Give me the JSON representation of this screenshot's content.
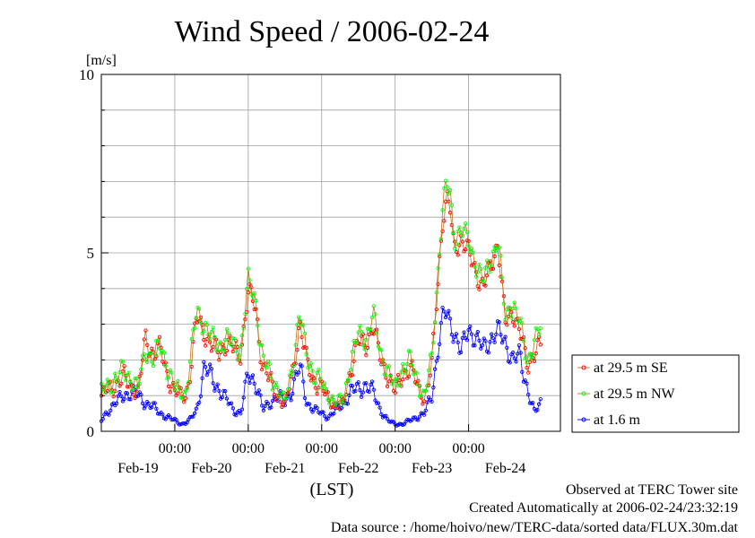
{
  "chart_data": {
    "type": "line",
    "title": "Wind Speed / 2006-02-24",
    "ylabel": "[m/s]",
    "xlabel": "(LST)",
    "ylim": [
      0,
      10
    ],
    "yticks": [
      0,
      5,
      10
    ],
    "y_gridlines": [
      0,
      1,
      2,
      3,
      4,
      5,
      6,
      7,
      8,
      9,
      10
    ],
    "xlim_days": [
      0,
      6.25
    ],
    "x_gridlines_days": [
      1,
      2,
      3,
      4,
      5
    ],
    "x_tick_labels": [
      {
        "label": "00:00",
        "at_day": 1
      },
      {
        "label": "00:00",
        "at_day": 2
      },
      {
        "label": "00:00",
        "at_day": 3
      },
      {
        "label": "00:00",
        "at_day": 4
      },
      {
        "label": "00:00",
        "at_day": 5
      }
    ],
    "date_labels": [
      {
        "label": "Feb-19",
        "at_day": 0.5
      },
      {
        "label": "Feb-20",
        "at_day": 1.5
      },
      {
        "label": "Feb-21",
        "at_day": 2.5
      },
      {
        "label": "Feb-22",
        "at_day": 3.5
      },
      {
        "label": "Feb-23",
        "at_day": 4.5
      },
      {
        "label": "Feb-24",
        "at_day": 5.5
      }
    ],
    "grid": true,
    "legend_position": "right",
    "sample_interval_hours": 0.5,
    "series": [
      {
        "name": "at 29.5 m SE",
        "color": "#ff0000",
        "line_color": "#c07020",
        "anchors": [
          [
            0,
            1.0
          ],
          [
            0.1,
            1.2
          ],
          [
            0.2,
            1.3
          ],
          [
            0.3,
            1.5
          ],
          [
            0.4,
            1.3
          ],
          [
            0.5,
            1.1
          ],
          [
            0.55,
            1.8
          ],
          [
            0.6,
            2.6
          ],
          [
            0.7,
            2.2
          ],
          [
            0.8,
            2.3
          ],
          [
            0.9,
            1.6
          ],
          [
            1.0,
            1.1
          ],
          [
            1.1,
            1.0
          ],
          [
            1.15,
            1.0
          ],
          [
            1.2,
            1.5
          ],
          [
            1.3,
            3.2
          ],
          [
            1.4,
            2.8
          ],
          [
            1.5,
            2.4
          ],
          [
            1.6,
            2.2
          ],
          [
            1.7,
            2.5
          ],
          [
            1.8,
            2.3
          ],
          [
            1.9,
            2.2
          ],
          [
            2.0,
            3.9
          ],
          [
            2.1,
            3.5
          ],
          [
            2.15,
            2.5
          ],
          [
            2.2,
            1.8
          ],
          [
            2.3,
            1.4
          ],
          [
            2.4,
            1.0
          ],
          [
            2.5,
            0.7
          ],
          [
            2.6,
            1.6
          ],
          [
            2.7,
            3.0
          ],
          [
            2.8,
            1.9
          ],
          [
            2.9,
            1.4
          ],
          [
            3.0,
            1.2
          ],
          [
            3.1,
            0.9
          ],
          [
            3.2,
            0.7
          ],
          [
            3.3,
            0.8
          ],
          [
            3.4,
            1.8
          ],
          [
            3.5,
            2.5
          ],
          [
            3.6,
            2.4
          ],
          [
            3.7,
            3.0
          ],
          [
            3.8,
            2.0
          ],
          [
            3.9,
            1.6
          ],
          [
            4.0,
            1.1
          ],
          [
            4.1,
            1.6
          ],
          [
            4.2,
            1.8
          ],
          [
            4.3,
            1.3
          ],
          [
            4.4,
            0.9
          ],
          [
            4.5,
            1.8
          ],
          [
            4.6,
            4.7
          ],
          [
            4.65,
            6.0
          ],
          [
            4.7,
            6.5
          ],
          [
            4.75,
            6.2
          ],
          [
            4.8,
            5.1
          ],
          [
            4.9,
            5.4
          ],
          [
            5.0,
            5.0
          ],
          [
            5.1,
            4.5
          ],
          [
            5.2,
            4.0
          ],
          [
            5.3,
            4.6
          ],
          [
            5.4,
            5.3
          ],
          [
            5.5,
            3.0
          ],
          [
            5.6,
            3.4
          ],
          [
            5.7,
            2.8
          ],
          [
            5.8,
            1.8
          ],
          [
            5.9,
            2.3
          ],
          [
            5.98,
            2.4
          ]
        ]
      },
      {
        "name": "at 29.5 m NW",
        "color": "#00ff00",
        "line_color": "#c07020",
        "anchors": [
          [
            0,
            1.1
          ],
          [
            0.1,
            1.3
          ],
          [
            0.2,
            1.5
          ],
          [
            0.3,
            1.7
          ],
          [
            0.4,
            1.5
          ],
          [
            0.5,
            1.2
          ],
          [
            0.55,
            1.7
          ],
          [
            0.6,
            2.3
          ],
          [
            0.7,
            2.0
          ],
          [
            0.8,
            2.4
          ],
          [
            0.9,
            1.8
          ],
          [
            1.0,
            1.2
          ],
          [
            1.1,
            1.1
          ],
          [
            1.15,
            1.1
          ],
          [
            1.2,
            1.8
          ],
          [
            1.3,
            3.4
          ],
          [
            1.4,
            3.0
          ],
          [
            1.5,
            2.6
          ],
          [
            1.6,
            2.4
          ],
          [
            1.7,
            2.6
          ],
          [
            1.8,
            2.4
          ],
          [
            1.9,
            2.3
          ],
          [
            2.0,
            4.2
          ],
          [
            2.1,
            3.7
          ],
          [
            2.15,
            2.7
          ],
          [
            2.2,
            2.0
          ],
          [
            2.3,
            1.6
          ],
          [
            2.4,
            1.2
          ],
          [
            2.5,
            0.8
          ],
          [
            2.6,
            1.8
          ],
          [
            2.7,
            3.3
          ],
          [
            2.8,
            2.1
          ],
          [
            2.9,
            1.6
          ],
          [
            3.0,
            1.3
          ],
          [
            3.1,
            1.0
          ],
          [
            3.2,
            0.8
          ],
          [
            3.3,
            0.9
          ],
          [
            3.4,
            2.0
          ],
          [
            3.5,
            2.7
          ],
          [
            3.6,
            2.6
          ],
          [
            3.7,
            3.3
          ],
          [
            3.8,
            2.2
          ],
          [
            3.9,
            1.7
          ],
          [
            4.0,
            1.2
          ],
          [
            4.1,
            1.8
          ],
          [
            4.2,
            2.0
          ],
          [
            4.3,
            1.4
          ],
          [
            4.4,
            1.0
          ],
          [
            4.5,
            2.0
          ],
          [
            4.6,
            5.0
          ],
          [
            4.65,
            6.4
          ],
          [
            4.7,
            6.9
          ],
          [
            4.75,
            6.6
          ],
          [
            4.8,
            5.4
          ],
          [
            4.9,
            5.7
          ],
          [
            5.0,
            5.3
          ],
          [
            5.1,
            4.7
          ],
          [
            5.2,
            4.2
          ],
          [
            5.3,
            4.8
          ],
          [
            5.4,
            5.4
          ],
          [
            5.5,
            3.2
          ],
          [
            5.6,
            3.6
          ],
          [
            5.7,
            3.0
          ],
          [
            5.8,
            2.0
          ],
          [
            5.9,
            2.5
          ],
          [
            5.98,
            2.9
          ]
        ]
      },
      {
        "name": "at 1.6 m",
        "color": "#0000ff",
        "line_color": "#0000ff",
        "anchors": [
          [
            0,
            0.3
          ],
          [
            0.1,
            0.6
          ],
          [
            0.2,
            0.8
          ],
          [
            0.3,
            1.0
          ],
          [
            0.4,
            1.1
          ],
          [
            0.5,
            1.0
          ],
          [
            0.6,
            0.8
          ],
          [
            0.7,
            0.7
          ],
          [
            0.8,
            0.5
          ],
          [
            0.9,
            0.4
          ],
          [
            1.0,
            0.3
          ],
          [
            1.1,
            0.2
          ],
          [
            1.2,
            0.3
          ],
          [
            1.3,
            0.6
          ],
          [
            1.4,
            1.8
          ],
          [
            1.5,
            1.5
          ],
          [
            1.6,
            1.2
          ],
          [
            1.7,
            0.9
          ],
          [
            1.8,
            0.6
          ],
          [
            1.9,
            0.5
          ],
          [
            2.0,
            1.6
          ],
          [
            2.1,
            1.4
          ],
          [
            2.2,
            0.6
          ],
          [
            2.3,
            0.8
          ],
          [
            2.4,
            1.0
          ],
          [
            2.5,
            0.8
          ],
          [
            2.6,
            1.2
          ],
          [
            2.7,
            1.8
          ],
          [
            2.8,
            0.8
          ],
          [
            2.9,
            0.6
          ],
          [
            3.0,
            0.5
          ],
          [
            3.1,
            0.4
          ],
          [
            3.2,
            0.6
          ],
          [
            3.3,
            0.8
          ],
          [
            3.4,
            1.1
          ],
          [
            3.5,
            1.2
          ],
          [
            3.6,
            1.3
          ],
          [
            3.7,
            1.1
          ],
          [
            3.8,
            0.6
          ],
          [
            3.9,
            0.3
          ],
          [
            4.0,
            0.2
          ],
          [
            4.1,
            0.2
          ],
          [
            4.2,
            0.3
          ],
          [
            4.3,
            0.4
          ],
          [
            4.4,
            0.5
          ],
          [
            4.5,
            1.0
          ],
          [
            4.6,
            2.6
          ],
          [
            4.65,
            3.2
          ],
          [
            4.7,
            3.3
          ],
          [
            4.8,
            2.8
          ],
          [
            4.9,
            2.2
          ],
          [
            5.0,
            2.9
          ],
          [
            5.1,
            2.6
          ],
          [
            5.2,
            2.3
          ],
          [
            5.3,
            2.6
          ],
          [
            5.4,
            2.8
          ],
          [
            5.5,
            2.5
          ],
          [
            5.6,
            2.0
          ],
          [
            5.7,
            2.1
          ],
          [
            5.8,
            1.2
          ],
          [
            5.9,
            0.5
          ],
          [
            5.98,
            0.8
          ]
        ]
      }
    ]
  },
  "footer": {
    "site_note": "Observed at TERC Tower site",
    "created_note": "Created Automatically at 2006-02-24/23:32:19",
    "source_note": "Data source : /home/hoivo/new/TERC-data/sorted  data/FLUX.30m.dat"
  }
}
